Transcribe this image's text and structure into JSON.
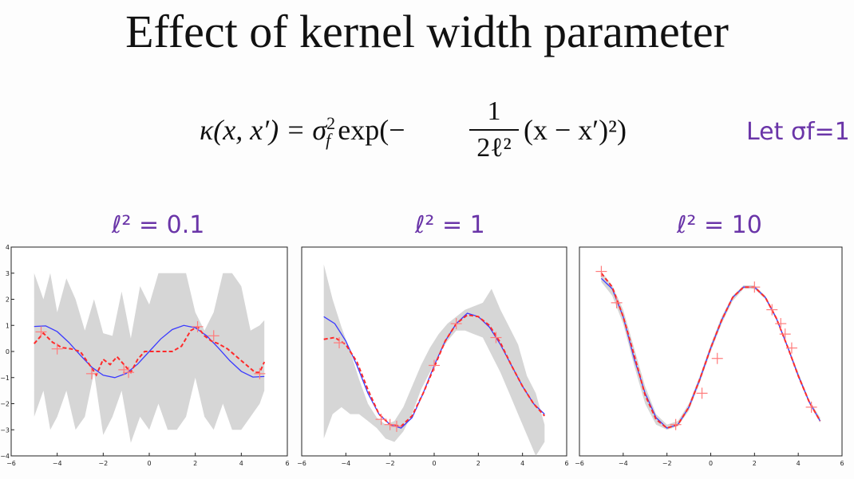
{
  "title": "Effect of kernel width parameter",
  "formula": {
    "lhs": "κ(x, x′) = σ",
    "sup": "2",
    "sub": "f",
    "exp": " exp(−",
    "num": "1",
    "den": "2ℓ²",
    "tail": "(x − x′)²)"
  },
  "annotation": "Let σf=1",
  "labels": [
    "ℓ² = 0.1",
    "ℓ² = 1",
    "ℓ² = 10"
  ],
  "colors": {
    "true_fn": "#3b3bff",
    "posterior_mean": "#ff2a2a",
    "band": "#d6d6d6",
    "samples": "#ff7b7b",
    "annotation": "#6a35a8"
  },
  "chart_data": [
    {
      "type": "line",
      "title": "ℓ² = 0.1",
      "xlim": [
        -6,
        6
      ],
      "ylim": [
        -4,
        4
      ],
      "xticks": [
        "−6",
        "−4",
        "−2",
        "0",
        "2",
        "4",
        "6"
      ],
      "yticks": [
        "4",
        "3",
        "2",
        "1",
        "0",
        "−1",
        "−2",
        "−3",
        "−4"
      ],
      "series": [
        {
          "style": "band",
          "x": [
            -5,
            -4.6,
            -4.3,
            -4.0,
            -3.6,
            -3.2,
            -2.8,
            -2.4,
            -2.0,
            -1.6,
            -1.2,
            -0.8,
            -0.4,
            0,
            0.4,
            0.8,
            1.2,
            1.6,
            2.0,
            2.4,
            2.8,
            3.2,
            3.6,
            4.0,
            4.4,
            4.8,
            5.0
          ],
          "upper": [
            3.0,
            2.0,
            3.0,
            1.5,
            2.8,
            2.0,
            0.8,
            2.0,
            0.7,
            0.6,
            2.3,
            0.5,
            2.5,
            1.8,
            3.0,
            3.0,
            3.0,
            3.0,
            1.5,
            0.8,
            1.5,
            3.0,
            3.0,
            2.5,
            0.8,
            1.0,
            1.2
          ],
          "lower": [
            -2.5,
            -1.5,
            -3.0,
            -2.5,
            -1.5,
            -3.0,
            -2.5,
            -0.8,
            -3.2,
            -2.5,
            -1.5,
            -3.5,
            -2.5,
            -3.0,
            -2.0,
            -3.0,
            -3.0,
            -2.5,
            -1.0,
            -2.5,
            -3.0,
            -2.0,
            -3.0,
            -3.0,
            -2.5,
            -2.0,
            -1.5
          ]
        },
        {
          "style": "solid",
          "x": [
            -5,
            -4.5,
            -4,
            -3.5,
            -3,
            -2.5,
            -2,
            -1.5,
            -1,
            -0.5,
            0,
            0.5,
            1,
            1.5,
            2,
            2.5,
            3,
            3.5,
            4,
            4.5,
            5
          ],
          "y": [
            0.96,
            0.98,
            0.76,
            0.35,
            -0.14,
            -0.6,
            -0.91,
            -1.0,
            -0.84,
            -0.48,
            0,
            0.48,
            0.84,
            1.0,
            0.91,
            0.6,
            0.14,
            -0.35,
            -0.76,
            -0.98,
            -0.96
          ]
        },
        {
          "style": "dashed",
          "x": [
            -5,
            -4.6,
            -4.2,
            -3.8,
            -3.4,
            -3.0,
            -2.6,
            -2.3,
            -2.0,
            -1.7,
            -1.4,
            -1.1,
            -0.8,
            -0.5,
            -0.2,
            0.2,
            0.6,
            1.0,
            1.4,
            1.8,
            2.1,
            2.4,
            2.7,
            3.0,
            3.4,
            3.8,
            4.2,
            4.6,
            4.8,
            5.0
          ],
          "y": [
            0.3,
            0.7,
            0.35,
            0.15,
            0.1,
            0.0,
            -0.5,
            -0.9,
            -0.3,
            -0.5,
            -0.2,
            -0.5,
            -0.8,
            -0.3,
            0.0,
            0.0,
            0.0,
            0.0,
            0.2,
            0.8,
            0.95,
            0.6,
            0.4,
            0.3,
            0.1,
            -0.2,
            -0.5,
            -0.8,
            -0.8,
            -0.4
          ]
        },
        {
          "style": "markers",
          "x": [
            -4.7,
            -4.0,
            -2.5,
            -1.1,
            -0.9,
            2.1,
            2.8,
            4.8
          ],
          "y": [
            0.75,
            0.1,
            -0.85,
            -0.7,
            -0.8,
            0.95,
            0.6,
            -0.85
          ]
        }
      ]
    },
    {
      "type": "line",
      "title": "ℓ² = 1",
      "xlim": [
        -6,
        6
      ],
      "ylim": [
        -3,
        3
      ],
      "xticks": [
        "−6",
        "−4",
        "−2",
        "0",
        "2",
        "4",
        "6"
      ],
      "yticks": [],
      "series": [
        {
          "style": "band",
          "x": [
            -5,
            -4.6,
            -4.2,
            -3.8,
            -3.4,
            -3.0,
            -2.6,
            -2.2,
            -1.8,
            -1.4,
            -1.0,
            -0.6,
            -0.2,
            0.2,
            0.6,
            1.0,
            1.4,
            1.8,
            2.2,
            2.6,
            3.0,
            3.4,
            3.8,
            4.2,
            4.6,
            5.0
          ],
          "upper": [
            2.5,
            1.5,
            0.7,
            0.0,
            -0.8,
            -1.5,
            -1.9,
            -2.1,
            -2.0,
            -1.6,
            -1.0,
            -0.4,
            0.1,
            0.5,
            0.8,
            1.0,
            1.2,
            1.3,
            1.4,
            1.8,
            1.2,
            0.7,
            0.2,
            -0.7,
            -1.2,
            -2.1
          ],
          "lower": [
            -2.5,
            -1.8,
            -1.6,
            -1.8,
            -1.8,
            -2.0,
            -2.2,
            -2.5,
            -2.6,
            -2.3,
            -1.8,
            -1.1,
            -0.6,
            -0.1,
            0.3,
            0.6,
            0.6,
            0.5,
            0.4,
            -0.1,
            -0.6,
            -1.2,
            -1.8,
            -2.4,
            -3.0,
            -2.6
          ]
        },
        {
          "style": "solid",
          "x": [
            -5,
            -4.5,
            -4,
            -3.5,
            -3,
            -2.5,
            -2,
            -1.5,
            -1,
            -0.5,
            0,
            0.5,
            1,
            1.5,
            2,
            2.5,
            3,
            3.5,
            4,
            4.5,
            5
          ],
          "y": [
            1.0,
            0.8,
            0.3,
            -0.4,
            -1.2,
            -1.8,
            -2.1,
            -2.2,
            -1.9,
            -1.2,
            -0.4,
            0.3,
            0.8,
            1.1,
            1.0,
            0.7,
            0.2,
            -0.4,
            -1.0,
            -1.5,
            -1.8
          ]
        },
        {
          "style": "dashed",
          "x": [
            -5,
            -4.5,
            -4,
            -3.5,
            -3,
            -2.5,
            -2,
            -1.5,
            -1,
            -0.5,
            0,
            0.5,
            1,
            1.5,
            2,
            2.5,
            3,
            3.5,
            4,
            4.5,
            5
          ],
          "y": [
            0.35,
            0.4,
            0.2,
            -0.3,
            -1.1,
            -1.8,
            -2.1,
            -2.15,
            -1.85,
            -1.2,
            -0.45,
            0.3,
            0.8,
            1.05,
            1.0,
            0.75,
            0.25,
            -0.4,
            -1.0,
            -1.5,
            -1.85
          ]
        },
        {
          "style": "markers",
          "x": [
            -4.3,
            -2.4,
            -2.0,
            -1.7,
            0.0,
            1.0,
            2.8
          ],
          "y": [
            0.25,
            -1.95,
            -2.1,
            -2.15,
            -0.4,
            0.8,
            0.4
          ]
        }
      ]
    },
    {
      "type": "line",
      "title": "ℓ² = 10",
      "xlim": [
        -6,
        6
      ],
      "ylim": [
        -3,
        3
      ],
      "xticks": [
        "−6",
        "−4",
        "−2",
        "0",
        "2",
        "4",
        "6"
      ],
      "yticks": [],
      "series": [
        {
          "style": "band",
          "x": [
            -5,
            -4.5,
            -4,
            -3.5,
            -3,
            -2.5,
            -2,
            -1.5,
            -1,
            -0.5,
            0,
            0.5,
            1,
            1.5,
            2,
            2.5,
            3,
            3.5,
            4,
            4.5,
            5
          ],
          "upper": [
            2.3,
            1.9,
            1.2,
            0.1,
            -1.0,
            -1.8,
            -2.1,
            -2.0,
            -1.5,
            -0.7,
            0.2,
            1.0,
            1.6,
            1.9,
            1.9,
            1.6,
            1.0,
            0.2,
            -0.6,
            -1.4,
            -1.9
          ],
          "lower": [
            2.0,
            1.6,
            0.8,
            -0.4,
            -1.5,
            -2.1,
            -2.25,
            -2.15,
            -1.7,
            -0.9,
            0.0,
            0.8,
            1.45,
            1.8,
            1.8,
            1.5,
            0.9,
            0.1,
            -0.75,
            -1.5,
            -2.05
          ]
        },
        {
          "style": "solid",
          "x": [
            -5,
            -4.5,
            -4,
            -3.5,
            -3,
            -2.5,
            -2,
            -1.5,
            -1,
            -0.5,
            0,
            0.5,
            1,
            1.5,
            2,
            2.5,
            3,
            3.5,
            4,
            4.5,
            5
          ],
          "y": [
            2.1,
            1.8,
            1.0,
            -0.2,
            -1.2,
            -1.9,
            -2.2,
            -2.1,
            -1.6,
            -0.8,
            0.1,
            0.9,
            1.55,
            1.85,
            1.85,
            1.55,
            0.95,
            0.15,
            -0.7,
            -1.45,
            -2.0
          ]
        },
        {
          "style": "dashed",
          "x": [
            -5,
            -4.5,
            -4,
            -3.5,
            -3,
            -2.5,
            -2,
            -1.5,
            -1,
            -0.5,
            0,
            0.5,
            1,
            1.5,
            2,
            2.5,
            3,
            3.5,
            4,
            4.5,
            5
          ],
          "y": [
            2.25,
            1.85,
            1.0,
            -0.1,
            -1.25,
            -1.95,
            -2.2,
            -2.1,
            -1.6,
            -0.8,
            0.1,
            0.9,
            1.55,
            1.85,
            1.85,
            1.55,
            0.95,
            0.15,
            -0.7,
            -1.45,
            -2.0
          ]
        },
        {
          "style": "markers",
          "x": [
            -5,
            -4.3,
            -1.6,
            -0.4,
            0.3,
            2.0,
            2.8,
            3.2,
            3.4,
            3.7,
            4.6
          ],
          "y": [
            2.3,
            1.4,
            -2.1,
            -1.2,
            -0.2,
            1.85,
            1.2,
            0.8,
            0.5,
            0.1,
            -1.6
          ]
        }
      ]
    }
  ]
}
